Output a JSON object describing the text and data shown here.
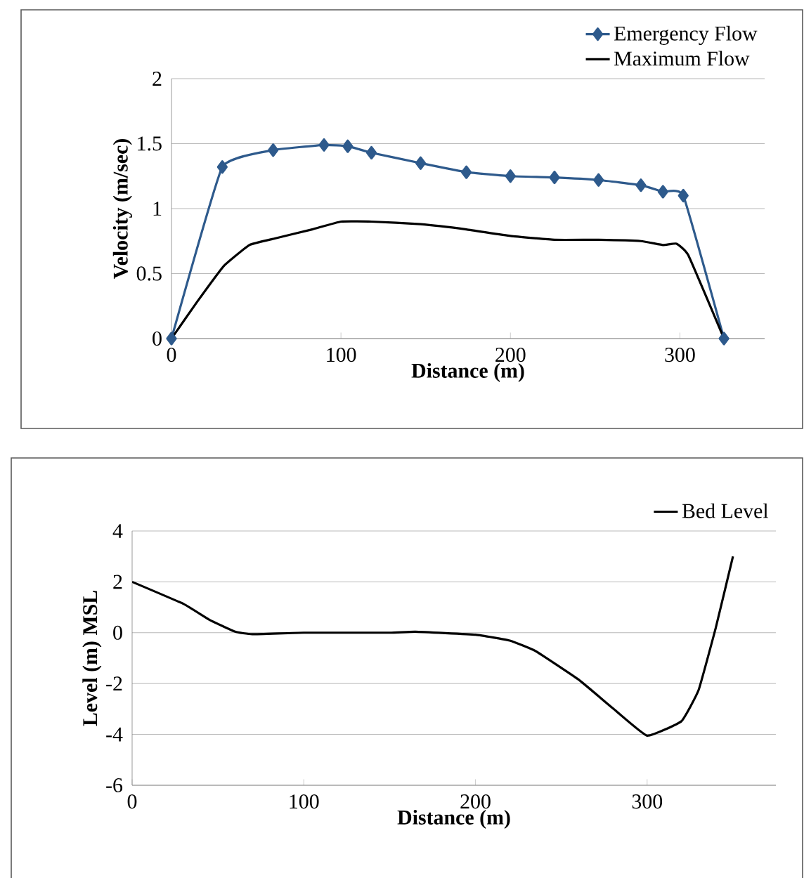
{
  "chart_data": [
    {
      "type": "line",
      "xlabel": "Distance (m)",
      "ylabel": "Velocity (m/sec)",
      "xlim": [
        0,
        350
      ],
      "ylim": [
        0,
        2
      ],
      "xticks": [
        0,
        100,
        200,
        300
      ],
      "yticks": [
        0,
        0.5,
        1,
        1.5,
        2
      ],
      "grid": "y",
      "legend": "top right",
      "series": [
        {
          "name": "Emergency Flow",
          "color": "#2e5a8c",
          "marker": "diamond",
          "x": [
            0,
            30,
            60,
            90,
            104,
            118,
            147,
            174,
            200,
            226,
            252,
            277,
            290,
            302,
            326
          ],
          "values": [
            0,
            1.32,
            1.45,
            1.49,
            1.48,
            1.43,
            1.35,
            1.28,
            1.25,
            1.24,
            1.22,
            1.18,
            1.13,
            1.1,
            0
          ]
        },
        {
          "name": "Maximum Flow",
          "color": "#000000",
          "marker": "none",
          "x": [
            0,
            15,
            31,
            46,
            61,
            83,
            100,
            118,
            147,
            174,
            200,
            226,
            252,
            277,
            290,
            298,
            305,
            326
          ],
          "values": [
            0,
            0.28,
            0.56,
            0.72,
            0.77,
            0.84,
            0.9,
            0.9,
            0.88,
            0.84,
            0.79,
            0.76,
            0.76,
            0.75,
            0.72,
            0.73,
            0.64,
            0
          ]
        }
      ]
    },
    {
      "type": "line",
      "xlabel": "Distance (m)",
      "ylabel": "Level (m) MSL",
      "xlim": [
        0,
        375
      ],
      "ylim": [
        -6,
        4
      ],
      "xticks": [
        0,
        100,
        200,
        300
      ],
      "yticks": [
        -6,
        -4,
        -2,
        0,
        2,
        4
      ],
      "grid": "y",
      "legend": "top right",
      "series": [
        {
          "name": "Bed Level",
          "color": "#000000",
          "marker": "none",
          "x": [
            0,
            30,
            45,
            60,
            70,
            100,
            150,
            165,
            200,
            220,
            235,
            260,
            280,
            300,
            320,
            330,
            340,
            350
          ],
          "values": [
            2,
            1.13,
            0.51,
            0.04,
            -0.06,
            0,
            0,
            0.04,
            -0.08,
            -0.31,
            -0.72,
            -1.84,
            -2.97,
            -4.05,
            -3.48,
            -2.25,
            0.2,
            3
          ]
        }
      ]
    }
  ]
}
